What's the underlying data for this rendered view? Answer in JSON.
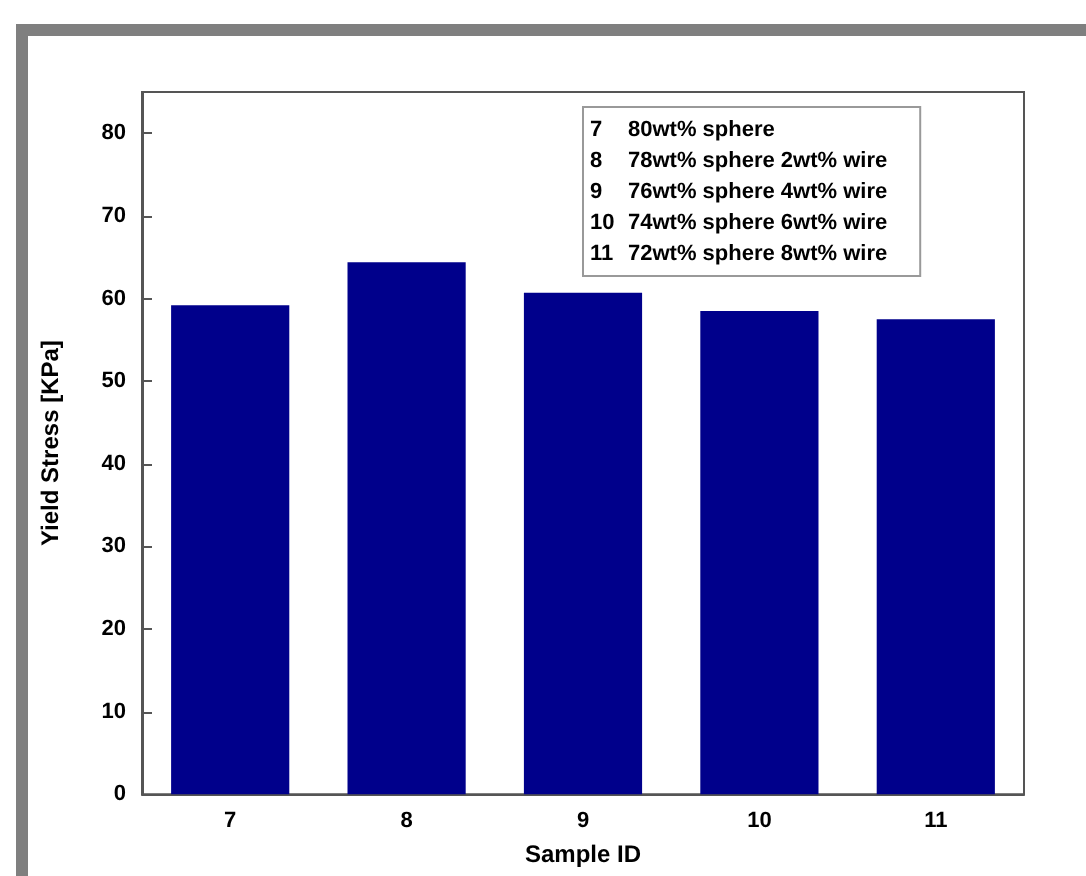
{
  "chart_data": {
    "type": "bar",
    "xlabel": "Sample ID",
    "ylabel": "Yield Stress [KPa]",
    "categories": [
      "7",
      "8",
      "9",
      "10",
      "11"
    ],
    "values": [
      59.2,
      64.4,
      60.7,
      58.5,
      57.5
    ],
    "color": "#00008b",
    "ylim": [
      0,
      85
    ],
    "yticks": [
      0,
      10,
      20,
      30,
      40,
      50,
      60,
      70,
      80
    ],
    "grid": false,
    "annotations": [
      "7 80wt% sphere",
      "8 78wt% sphere 2wt% wire",
      "9 76wt% sphere 4wt% wire",
      "10 74wt% sphere 6wt% wire",
      "11 72wt% sphere 8wt% wire"
    ]
  }
}
